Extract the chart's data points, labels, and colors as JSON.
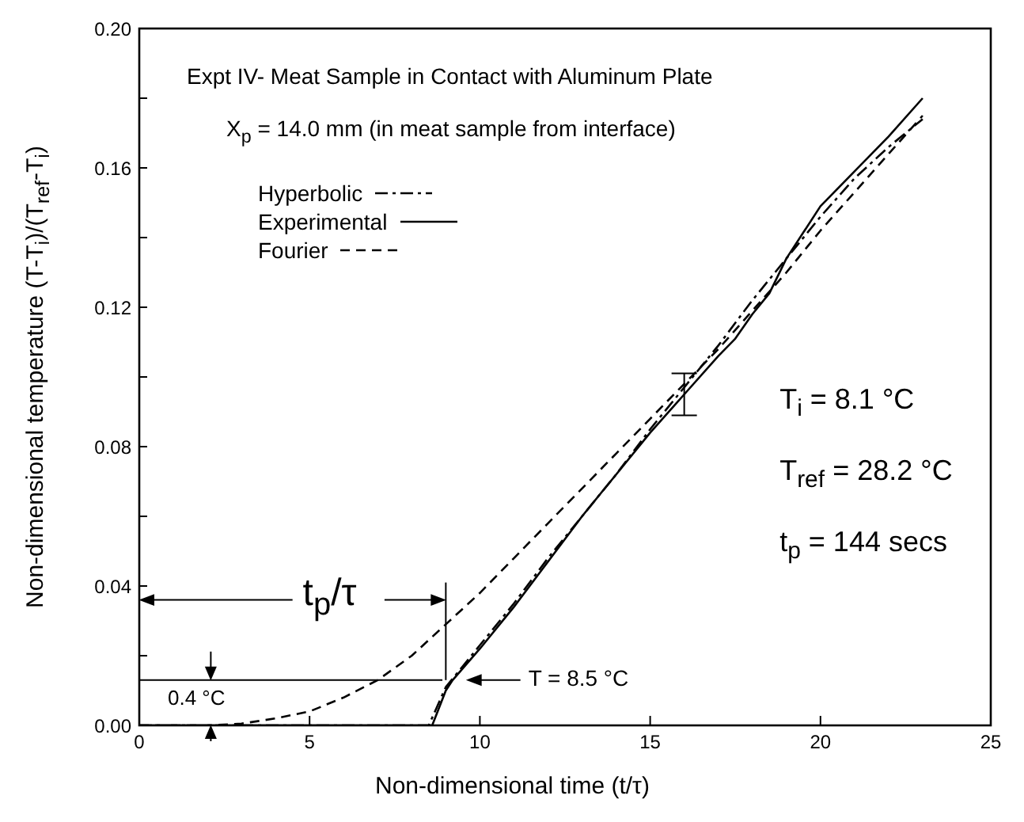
{
  "chart_data": {
    "type": "line",
    "title": "Expt IV- Meat Sample in Contact with Aluminum Plate",
    "subtitle": "X$_{p}$ = 14.0 mm (in meat sample from interface)",
    "xlabel": "Non-dimensional time (t/τ)",
    "ylabel": "Non-dimensional temperature (T-T$_{i}$)/(T$_{ref}$-T$_{i}$)",
    "series": [
      {
        "name": "Hyperbolic",
        "color": "#000000",
        "line_style": "dashdot",
        "x": [
          0,
          8.5,
          9,
          10,
          11,
          12,
          13,
          14,
          15,
          16,
          17,
          18,
          19,
          20,
          21,
          22,
          23
        ],
        "values": [
          0,
          0,
          0.011,
          0.023,
          0.035,
          0.048,
          0.06,
          0.072,
          0.085,
          0.097,
          0.109,
          0.122,
          0.134,
          0.146,
          0.157,
          0.166,
          0.174
        ]
      },
      {
        "name": "Experimental",
        "color": "#000000",
        "line_style": "solid",
        "x": [
          0,
          8.6,
          9.0,
          9.2,
          10,
          11,
          12,
          13,
          14,
          15,
          16,
          17,
          17.5,
          18,
          18.5,
          19,
          20,
          21,
          22,
          23
        ],
        "values": [
          0,
          0,
          0.01,
          0.013,
          0.022,
          0.034,
          0.047,
          0.06,
          0.072,
          0.084,
          0.095,
          0.106,
          0.111,
          0.118,
          0.124,
          0.134,
          0.149,
          0.159,
          0.169,
          0.18
        ],
        "errors": [
          null,
          null,
          null,
          null,
          null,
          null,
          null,
          null,
          null,
          null,
          0.006,
          null,
          null,
          null,
          null,
          null,
          null,
          null,
          null,
          null
        ]
      },
      {
        "name": "Fourier",
        "color": "#000000",
        "line_style": "dashed",
        "x": [
          0,
          2,
          3,
          4,
          5,
          6,
          7,
          8,
          9,
          10,
          11,
          12,
          13,
          14,
          15,
          16,
          17,
          18,
          19,
          20,
          21,
          22,
          23
        ],
        "values": [
          0,
          0,
          0.0005,
          0.002,
          0.004,
          0.008,
          0.013,
          0.02,
          0.029,
          0.038,
          0.048,
          0.058,
          0.068,
          0.078,
          0.088,
          0.098,
          0.108,
          0.119,
          0.13,
          0.142,
          0.153,
          0.164,
          0.175
        ]
      }
    ],
    "xlim": [
      0,
      25
    ],
    "xticks": [
      0,
      5,
      10,
      15,
      20,
      25
    ],
    "ylim": [
      0,
      0.2
    ],
    "yticks": [
      {
        "value": 0,
        "label": "0.00"
      },
      {
        "value": 0.02,
        "label": null
      },
      0.04,
      {
        "value": 0.06,
        "label": null
      },
      0.08,
      {
        "value": 0.1,
        "label": null
      },
      0.12,
      {
        "value": 0.14,
        "label": null
      },
      0.16,
      {
        "value": 0.18,
        "label": null
      },
      {
        "value": 0.2,
        "label": "0.20"
      }
    ],
    "annotations": [
      "T$_{i}$ = 8.1 °C",
      "T$_{ref}$ = 28.2 °C",
      "t$_{p}$ = 144 secs",
      "t$_{p}$/τ",
      "0.4 °C",
      "T = 8.5 °C"
    ],
    "grid": false,
    "legend": "top left",
    "marker": "none"
  }
}
